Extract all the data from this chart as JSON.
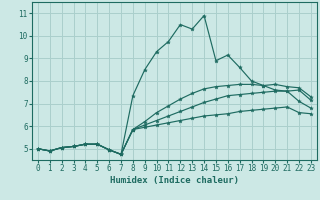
{
  "xlabel": "Humidex (Indice chaleur)",
  "bg_color": "#cce8e5",
  "grid_color": "#aacfcc",
  "line_color": "#1e6b61",
  "xlim": [
    -0.5,
    23.5
  ],
  "ylim": [
    4.5,
    11.5
  ],
  "yticks": [
    5,
    6,
    7,
    8,
    9,
    10,
    11
  ],
  "xticks": [
    0,
    1,
    2,
    3,
    4,
    5,
    6,
    7,
    8,
    9,
    10,
    11,
    12,
    13,
    14,
    15,
    16,
    17,
    18,
    19,
    20,
    21,
    22,
    23
  ],
  "series": [
    [
      5.0,
      4.9,
      5.05,
      5.1,
      5.2,
      5.2,
      4.95,
      4.75,
      5.85,
      5.95,
      6.05,
      6.15,
      6.25,
      6.35,
      6.45,
      6.5,
      6.55,
      6.65,
      6.7,
      6.75,
      6.8,
      6.85,
      6.6,
      6.55
    ],
    [
      5.0,
      4.9,
      5.05,
      5.1,
      5.2,
      5.2,
      4.95,
      4.75,
      5.85,
      6.05,
      6.25,
      6.45,
      6.65,
      6.85,
      7.05,
      7.2,
      7.35,
      7.4,
      7.45,
      7.5,
      7.55,
      7.55,
      7.6,
      7.15
    ],
    [
      5.0,
      4.9,
      5.05,
      5.1,
      5.2,
      5.2,
      4.95,
      4.75,
      5.85,
      6.2,
      6.6,
      6.9,
      7.2,
      7.45,
      7.65,
      7.75,
      7.8,
      7.85,
      7.85,
      7.8,
      7.85,
      7.75,
      7.7,
      7.3
    ],
    [
      5.0,
      4.9,
      5.05,
      5.1,
      5.2,
      5.2,
      4.95,
      4.75,
      7.35,
      8.5,
      9.3,
      9.75,
      10.5,
      10.3,
      10.9,
      8.9,
      9.15,
      8.6,
      8.0,
      7.8,
      7.6,
      7.55,
      7.1,
      6.8
    ]
  ]
}
